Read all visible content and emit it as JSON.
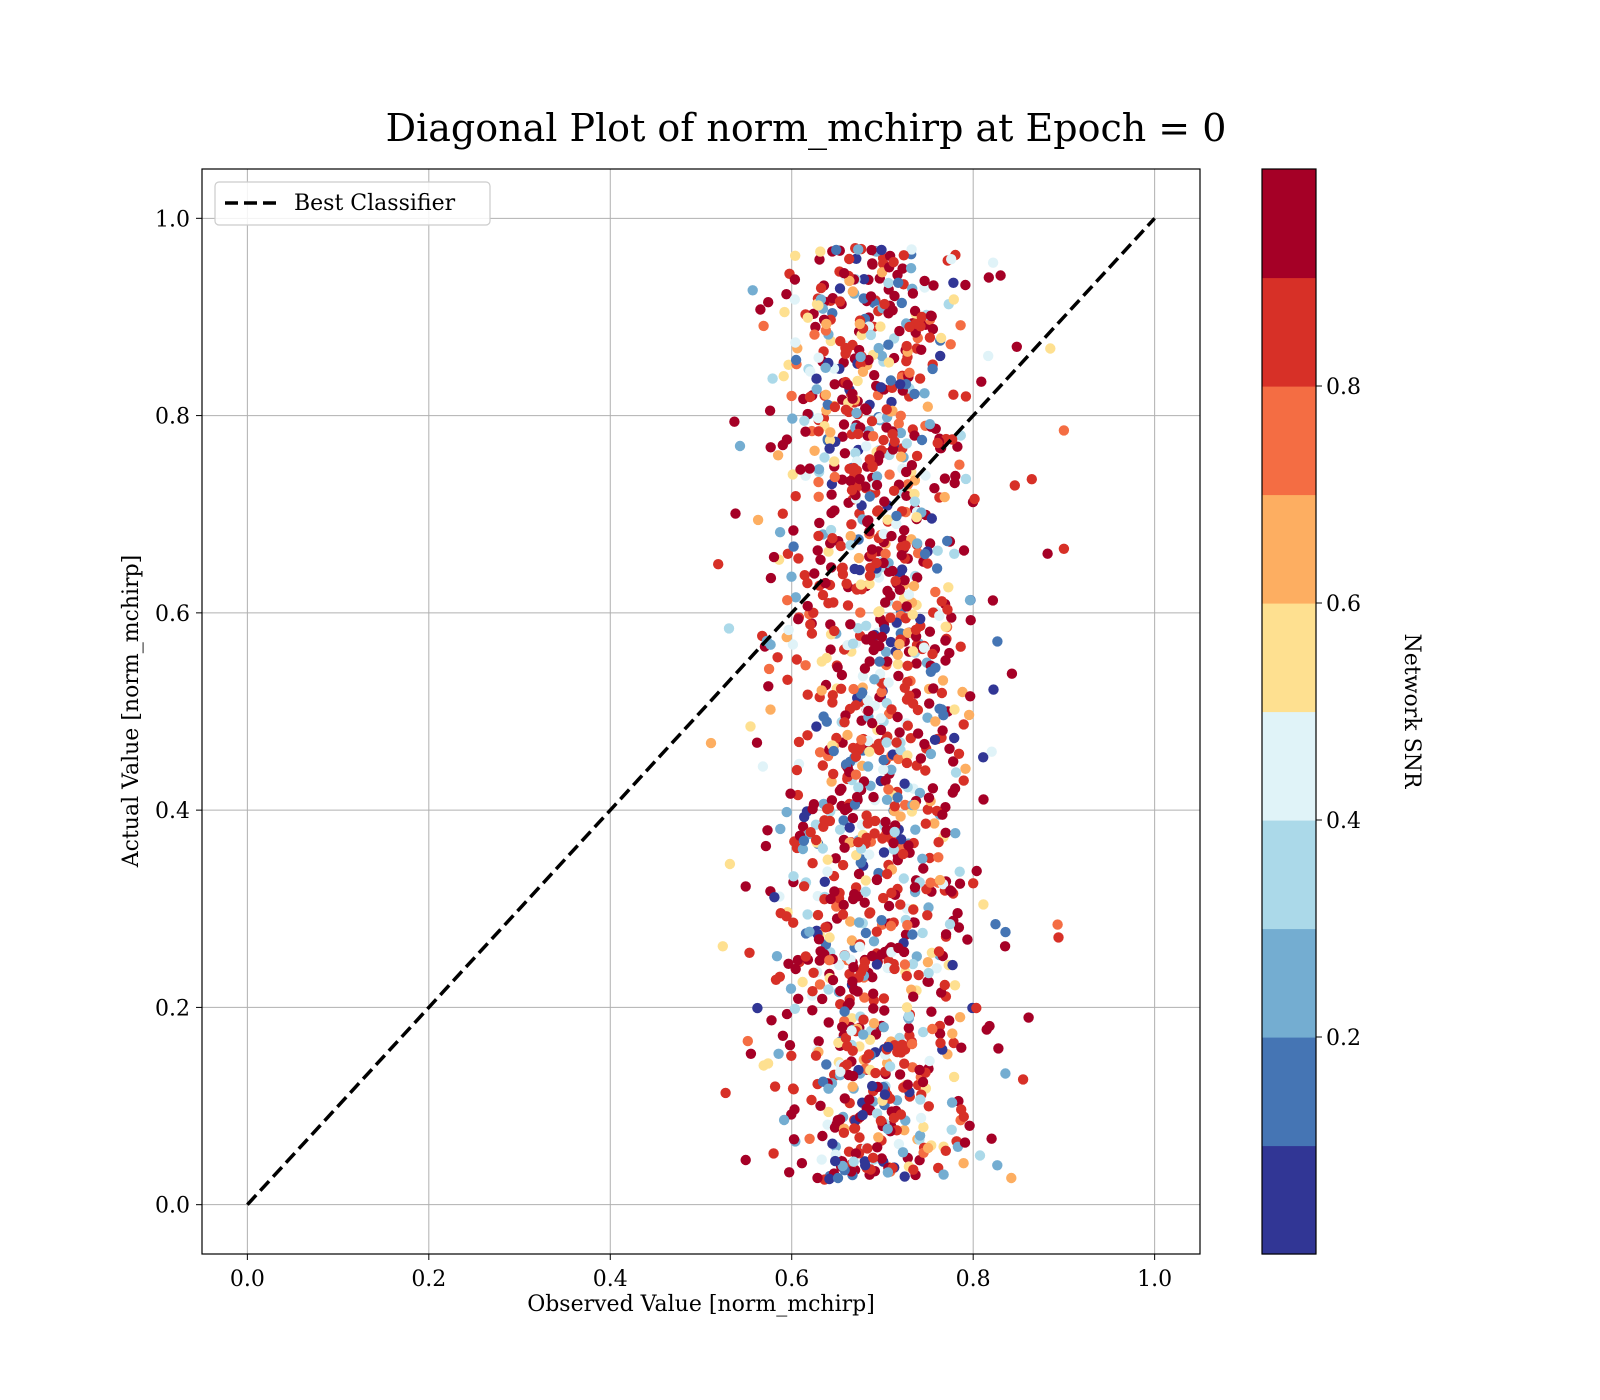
{
  "chart_data": {
    "type": "scatter",
    "title": "Diagonal Plot of norm_mchirp at Epoch = 0",
    "xlabel": "Observed Value [norm_mchirp]",
    "ylabel": "Actual Value [norm_mchirp]",
    "xlim": [
      -0.05,
      1.05
    ],
    "ylim": [
      -0.05,
      1.05
    ],
    "xticks": [
      "0.0",
      "0.2",
      "0.4",
      "0.6",
      "0.8",
      "1.0"
    ],
    "yticks": [
      "0.0",
      "0.2",
      "0.4",
      "0.6",
      "0.8",
      "1.0"
    ],
    "grid": true,
    "legend": {
      "placement": "upper-left",
      "entries": [
        {
          "label": "Best Classifier",
          "style": "black dashed line"
        }
      ]
    },
    "diagonal_line": {
      "label": "Best Classifier",
      "x": [
        0.0,
        1.0
      ],
      "y": [
        0.0,
        1.0
      ],
      "color": "#000000",
      "dash": "dashed"
    },
    "colorbar": {
      "label": "Network SNR",
      "range": [
        0.0,
        1.0
      ],
      "ticks": [
        "0.2",
        "0.4",
        "0.6",
        "0.8"
      ],
      "tick_values": [
        0.2,
        0.4,
        0.6,
        0.8
      ],
      "colormap": "RdYlBu_r",
      "bins": 10,
      "colors": [
        "#313695",
        "#4575b4",
        "#74add1",
        "#abd9e9",
        "#e0f3f8",
        "#fee090",
        "#fdae61",
        "#f46d43",
        "#d73027",
        "#a50026"
      ]
    },
    "point_cloud": {
      "count": 1500,
      "x_center": 0.69,
      "x_spread": 0.055,
      "x_range": [
        0.51,
        0.9
      ],
      "y_range": [
        0.025,
        0.97
      ],
      "color_value": "Network SNR"
    },
    "points_sample": [
      {
        "x": 0.557,
        "y": 0.927,
        "snr": 0.25
      },
      {
        "x": 0.649,
        "y": 0.968,
        "snr": 0.15
      },
      {
        "x": 0.699,
        "y": 0.968,
        "snr": 0.05
      },
      {
        "x": 0.822,
        "y": 0.955,
        "snr": 0.45
      },
      {
        "x": 0.75,
        "y": 0.809,
        "snr": 0.65
      },
      {
        "x": 0.511,
        "y": 0.468,
        "snr": 0.65
      },
      {
        "x": 0.524,
        "y": 0.262,
        "snr": 0.55
      },
      {
        "x": 0.9,
        "y": 0.785,
        "snr": 0.75
      },
      {
        "x": 0.9,
        "y": 0.665,
        "snr": 0.85
      },
      {
        "x": 0.885,
        "y": 0.868,
        "snr": 0.55
      },
      {
        "x": 0.882,
        "y": 0.66,
        "snr": 0.95
      },
      {
        "x": 0.893,
        "y": 0.284,
        "snr": 0.75
      },
      {
        "x": 0.894,
        "y": 0.271,
        "snr": 0.85
      },
      {
        "x": 0.855,
        "y": 0.127,
        "snr": 0.85
      },
      {
        "x": 0.842,
        "y": 0.027,
        "snr": 0.65
      },
      {
        "x": 0.651,
        "y": 0.027,
        "snr": 0.15
      },
      {
        "x": 0.681,
        "y": 0.04,
        "snr": 0.05
      },
      {
        "x": 0.796,
        "y": 0.08,
        "snr": 0.95
      },
      {
        "x": 0.58,
        "y": 0.052,
        "snr": 0.85
      },
      {
        "x": 0.555,
        "y": 0.153,
        "snr": 0.95
      }
    ]
  }
}
